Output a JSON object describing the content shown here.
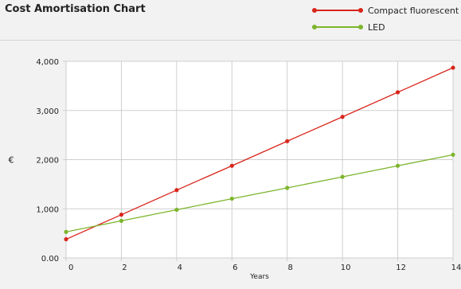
{
  "chart_data": {
    "type": "line",
    "title": "Cost Amortisation Chart",
    "xlabel": "Years",
    "ylabel": "€",
    "x": [
      0,
      2,
      4,
      6,
      8,
      10,
      12,
      14
    ],
    "xlim": [
      0,
      14
    ],
    "ylim": [
      0,
      4000
    ],
    "x_ticks": [
      "0",
      "2",
      "4",
      "6",
      "8",
      "10",
      "12",
      "14"
    ],
    "y_ticks": [
      {
        "value": 0,
        "label": "0.00"
      },
      {
        "value": 1000,
        "label": "1,000"
      },
      {
        "value": 2000,
        "label": "2,000"
      },
      {
        "value": 3000,
        "label": "3,000"
      },
      {
        "value": 4000,
        "label": "4,000"
      }
    ],
    "grid": true,
    "legend_position": "top-right",
    "series": [
      {
        "name": "Compact fluorescent",
        "color": "#d9261c",
        "values": [
          380,
          880,
          1380,
          1875,
          2375,
          2870,
          3370,
          3870
        ]
      },
      {
        "name": "LED",
        "color": "#7db52c",
        "values": [
          530,
          755,
          980,
          1205,
          1425,
          1650,
          1875,
          2100
        ]
      }
    ]
  }
}
